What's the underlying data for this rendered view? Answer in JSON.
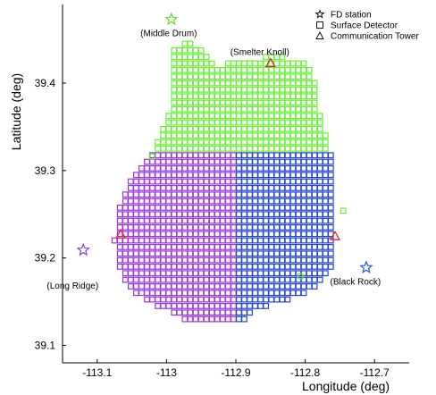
{
  "chart_data": {
    "type": "scatter",
    "xlabel": "Longitude (deg)",
    "ylabel": "Latitude (deg)",
    "xlim": [
      -113.15,
      -112.65
    ],
    "ylim": [
      39.08,
      39.49
    ],
    "x_ticks": [
      -113.1,
      -113.0,
      -112.9,
      -112.8,
      -112.7
    ],
    "x_tick_labels": [
      "-113.1",
      "-113",
      "-112.9",
      "-112.8",
      "-112.7"
    ],
    "y_ticks": [
      39.1,
      39.2,
      39.3,
      39.4
    ],
    "y_tick_labels": [
      "39.1",
      "39.2",
      "39.3",
      "39.4"
    ],
    "grid": false,
    "legend": {
      "placement": "top-right",
      "entries": [
        {
          "marker": "star",
          "label": "FD station"
        },
        {
          "marker": "square",
          "label": "Surface Detector"
        },
        {
          "marker": "triangle",
          "label": "Communication Tower"
        }
      ]
    },
    "colors": {
      "north_sd": "#66ee33",
      "west_sd": "#9933dd",
      "east_sd": "#2244cc",
      "tower": "#ee2222",
      "mdr_star": "#66dd33",
      "lr_star": "#8844cc",
      "br_star": "#2255dd"
    },
    "detector_grid": {
      "spacing_lon": 0.0078,
      "spacing_lat": 0.0075,
      "x_range": [
        -113.075,
        -112.757
      ],
      "y_range": [
        39.13,
        39.457
      ]
    },
    "fd_stations": [
      {
        "label": "(Middle Drum)",
        "lon": -112.993,
        "lat": 39.473,
        "color_key": "mdr_star"
      },
      {
        "label": "(Long Ridge)",
        "lon": -113.12,
        "lat": 39.209,
        "color_key": "lr_star"
      },
      {
        "label": "(Black Rock)",
        "lon": -112.712,
        "lat": 39.189,
        "color_key": "br_star"
      }
    ],
    "towers": [
      {
        "label": "(Smelter Knoll)",
        "lon": -112.85,
        "lat": 39.423
      },
      {
        "label": "",
        "lon": -113.066,
        "lat": 39.227
      },
      {
        "label": "",
        "lon": -112.757,
        "lat": 39.225
      }
    ]
  }
}
